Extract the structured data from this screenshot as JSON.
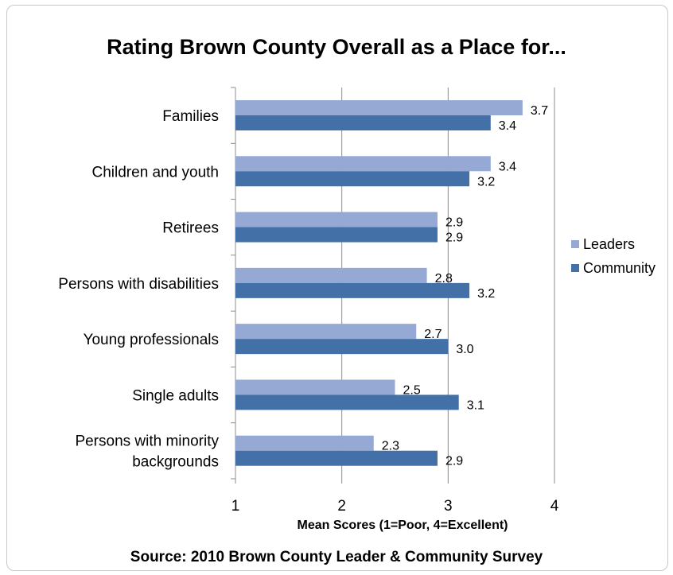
{
  "chart_data": {
    "type": "bar",
    "orientation": "horizontal",
    "title": "Rating Brown County Overall as a Place for...",
    "xlabel": "Mean Scores (1=Poor,  4=Excellent)",
    "source": "Source:  2010 Brown County Leader & Community  Survey",
    "categories": [
      "Families",
      "Children and youth",
      "Retirees",
      "Persons with disabilities",
      "Young professionals",
      "Single adults",
      "Persons with minority backgrounds"
    ],
    "category_lines": [
      [
        "Families"
      ],
      [
        "Children and youth"
      ],
      [
        "Retirees"
      ],
      [
        "Persons with disabilities"
      ],
      [
        "Young professionals"
      ],
      [
        "Single adults"
      ],
      [
        "Persons with minority",
        "backgrounds"
      ]
    ],
    "series": [
      {
        "name": "Leaders",
        "color": "#95a9d4",
        "values": [
          3.7,
          3.4,
          2.9,
          2.8,
          2.7,
          2.5,
          2.3
        ],
        "labels": [
          "3.7",
          "3.4",
          "2.9",
          "2.8",
          "2.7",
          "2.5",
          "2.3"
        ]
      },
      {
        "name": "Community",
        "color": "#4470a8",
        "values": [
          3.4,
          3.2,
          2.9,
          3.2,
          3.0,
          3.1,
          2.9
        ],
        "labels": [
          "3.4",
          "3.2",
          "2.9",
          "3.2",
          "3.0",
          "3.1",
          "2.9"
        ]
      }
    ],
    "xlim": [
      1,
      4
    ],
    "xticks": [
      "1",
      "2",
      "3",
      "4"
    ],
    "grid": true,
    "legend_position": "right"
  }
}
